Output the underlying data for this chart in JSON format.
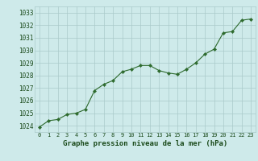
{
  "x": [
    0,
    1,
    2,
    3,
    4,
    5,
    6,
    7,
    8,
    9,
    10,
    11,
    12,
    13,
    14,
    15,
    16,
    17,
    18,
    19,
    20,
    21,
    22,
    23
  ],
  "y": [
    1023.9,
    1024.4,
    1024.5,
    1024.9,
    1025.0,
    1025.3,
    1026.8,
    1027.3,
    1027.6,
    1028.3,
    1028.5,
    1028.8,
    1028.8,
    1028.4,
    1028.2,
    1028.1,
    1028.5,
    1029.0,
    1029.7,
    1030.1,
    1031.4,
    1031.5,
    1032.4,
    1032.5
  ],
  "line_color": "#2d6a2d",
  "marker": "D",
  "marker_size": 2.2,
  "bg_color": "#ceeaea",
  "grid_color": "#aacaca",
  "xlabel": "Graphe pression niveau de la mer (hPa)",
  "xlabel_color": "#1a4a1a",
  "tick_color": "#1a4a1a",
  "ylim_min": 1023.5,
  "ylim_max": 1033.5,
  "yticks": [
    1024,
    1025,
    1026,
    1027,
    1028,
    1029,
    1030,
    1031,
    1032,
    1033
  ],
  "xticks": [
    0,
    1,
    2,
    3,
    4,
    5,
    6,
    7,
    8,
    9,
    10,
    11,
    12,
    13,
    14,
    15,
    16,
    17,
    18,
    19,
    20,
    21,
    22,
    23
  ]
}
